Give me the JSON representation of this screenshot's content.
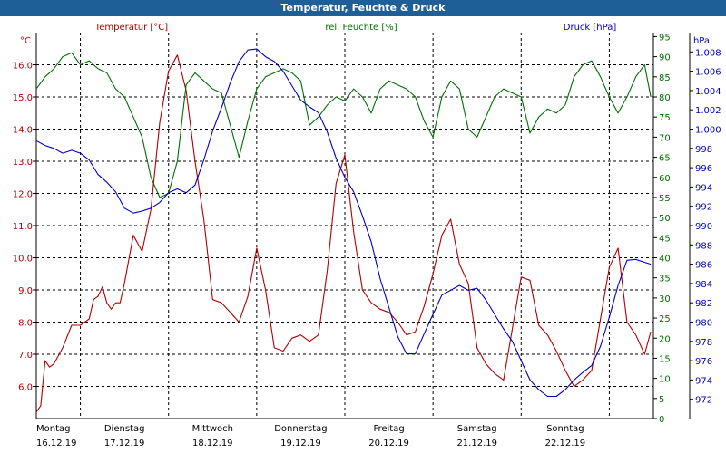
{
  "window": {
    "title": "Temperatur, Feuchte & Druck"
  },
  "colors": {
    "temperature": "#b00000",
    "humidity": "#007000",
    "pressure": "#0000c0",
    "grid": "#000000",
    "title_bar": "#1f5f98"
  },
  "chart_data": {
    "type": "line",
    "title": "Temperatur, Feuchte & Druck",
    "grid": true,
    "x_range": [
      0,
      7
    ],
    "x_ticks": [
      {
        "day": "Montag",
        "date": "16.12.19"
      },
      {
        "day": "Dienstag",
        "date": "17.12.19"
      },
      {
        "day": "Mittwoch",
        "date": "18.12.19"
      },
      {
        "day": "Donnerstag",
        "date": "19.12.19"
      },
      {
        "day": "Freitag",
        "date": "20.12.19"
      },
      {
        "day": "Samstag",
        "date": "21.12.19"
      },
      {
        "day": "Sonntag",
        "date": "22.12.19"
      }
    ],
    "axes": {
      "temperature": {
        "label": "Temperatur [°C]",
        "unit": "°C",
        "range": [
          5.0,
          17.0
        ],
        "ticks": [
          "6.0",
          "7.0",
          "8.0",
          "9.0",
          "10.0",
          "11.0",
          "12.0",
          "13.0",
          "14.0",
          "15.0",
          "16.0"
        ]
      },
      "humidity": {
        "label": "rel. Feuchte [%]",
        "unit": "%",
        "range": [
          0,
          96
        ],
        "ticks": [
          "0",
          "5",
          "10",
          "15",
          "20",
          "25",
          "30",
          "35",
          "40",
          "45",
          "50",
          "55",
          "60",
          "65",
          "70",
          "75",
          "80",
          "85",
          "90",
          "95"
        ]
      },
      "pressure": {
        "label": "Druck [hPa]",
        "unit": "hPa",
        "range": [
          970,
          1010
        ],
        "ticks": [
          "972",
          "974",
          "976",
          "978",
          "980",
          "982",
          "984",
          "986",
          "988",
          "990",
          "992",
          "994",
          "996",
          "998",
          "1.000",
          "1.002",
          "1.004",
          "1.006",
          "1.008"
        ]
      }
    },
    "series": [
      {
        "name": "Temperatur [°C]",
        "axis": "temperature",
        "x": [
          0,
          0.05,
          0.1,
          0.15,
          0.2,
          0.3,
          0.4,
          0.5,
          0.6,
          0.65,
          0.7,
          0.75,
          0.8,
          0.85,
          0.9,
          0.95,
          1.0,
          1.1,
          1.2,
          1.3,
          1.4,
          1.5,
          1.6,
          1.7,
          1.8,
          1.9,
          2.0,
          2.1,
          2.2,
          2.3,
          2.4,
          2.5,
          2.6,
          2.7,
          2.8,
          2.9,
          3.0,
          3.1,
          3.2,
          3.3,
          3.4,
          3.5,
          3.6,
          3.7,
          3.8,
          3.9,
          4.0,
          4.1,
          4.2,
          4.3,
          4.4,
          4.5,
          4.6,
          4.7,
          4.8,
          4.9,
          5.0,
          5.1,
          5.2,
          5.3,
          5.4,
          5.5,
          5.6,
          5.7,
          5.8,
          5.9,
          6.0,
          6.1,
          6.2,
          6.3,
          6.4,
          6.5,
          6.6,
          6.7,
          6.8,
          6.9,
          6.97
        ],
        "values": [
          5.2,
          5.4,
          6.8,
          6.6,
          6.7,
          7.2,
          7.9,
          7.9,
          8.1,
          8.7,
          8.8,
          9.1,
          8.6,
          8.4,
          8.6,
          8.6,
          9.2,
          10.7,
          10.2,
          11.5,
          14.2,
          15.8,
          16.3,
          15.2,
          13.0,
          11.2,
          8.7,
          8.6,
          8.3,
          8.0,
          8.8,
          10.3,
          9.0,
          7.2,
          7.1,
          7.5,
          7.6,
          7.4,
          7.6,
          9.6,
          12.3,
          13.2,
          10.8,
          9.0,
          8.6,
          8.4,
          8.3,
          8.0,
          7.6,
          7.7,
          8.5,
          9.5,
          10.7,
          11.2,
          9.8,
          9.2,
          7.2,
          6.7,
          6.4,
          6.2,
          7.8,
          9.4,
          9.3,
          7.9,
          7.6,
          7.1,
          6.5,
          6.0,
          6.2,
          6.5,
          8.1,
          9.7,
          10.3,
          8.0,
          7.6,
          7.0,
          7.7
        ]
      },
      {
        "name": "rel. Feuchte [%]",
        "axis": "humidity",
        "x": [
          0,
          0.1,
          0.2,
          0.3,
          0.4,
          0.5,
          0.6,
          0.7,
          0.8,
          0.9,
          1.0,
          1.1,
          1.2,
          1.3,
          1.4,
          1.5,
          1.6,
          1.7,
          1.8,
          1.9,
          2.0,
          2.1,
          2.2,
          2.3,
          2.4,
          2.5,
          2.6,
          2.7,
          2.8,
          2.9,
          3.0,
          3.1,
          3.2,
          3.3,
          3.4,
          3.5,
          3.6,
          3.7,
          3.8,
          3.9,
          4.0,
          4.1,
          4.2,
          4.3,
          4.4,
          4.5,
          4.6,
          4.7,
          4.8,
          4.9,
          5.0,
          5.1,
          5.2,
          5.3,
          5.4,
          5.5,
          5.6,
          5.7,
          5.8,
          5.9,
          6.0,
          6.1,
          6.2,
          6.3,
          6.4,
          6.5,
          6.6,
          6.7,
          6.8,
          6.9,
          6.97
        ],
        "values": [
          82,
          85,
          87,
          90,
          91,
          88,
          89,
          87,
          86,
          82,
          80,
          75,
          70,
          60,
          55,
          56,
          64,
          83,
          86,
          84,
          82,
          81,
          73,
          65,
          74,
          82,
          85,
          86,
          87,
          86,
          84,
          73,
          75,
          78,
          80,
          79,
          82,
          80,
          76,
          82,
          84,
          83,
          82,
          80,
          74,
          70,
          80,
          84,
          82,
          72,
          70,
          75,
          80,
          82,
          81,
          80,
          71,
          75,
          77,
          76,
          78,
          85,
          88,
          89,
          85,
          80,
          76,
          80,
          85,
          88,
          80
        ]
      },
      {
        "name": "Druck [hPa]",
        "axis": "pressure",
        "x": [
          0,
          0.1,
          0.2,
          0.3,
          0.4,
          0.5,
          0.6,
          0.7,
          0.8,
          0.9,
          1.0,
          1.1,
          1.2,
          1.3,
          1.4,
          1.5,
          1.6,
          1.7,
          1.8,
          1.9,
          2.0,
          2.1,
          2.2,
          2.3,
          2.4,
          2.5,
          2.6,
          2.7,
          2.8,
          2.9,
          3.0,
          3.1,
          3.2,
          3.3,
          3.4,
          3.5,
          3.6,
          3.7,
          3.8,
          3.9,
          4.0,
          4.1,
          4.2,
          4.3,
          4.4,
          4.5,
          4.6,
          4.7,
          4.8,
          4.9,
          5.0,
          5.1,
          5.2,
          5.3,
          5.4,
          5.5,
          5.6,
          5.7,
          5.8,
          5.9,
          6.0,
          6.1,
          6.2,
          6.3,
          6.4,
          6.5,
          6.6,
          6.7,
          6.8,
          6.9,
          6.97
        ],
        "values": [
          998.8,
          998.3,
          998.0,
          997.5,
          997.8,
          997.5,
          996.8,
          995.3,
          994.5,
          993.5,
          991.8,
          991.3,
          991.5,
          991.8,
          992.4,
          993.4,
          993.8,
          993.4,
          994.2,
          996.8,
          999.8,
          1002.2,
          1004.8,
          1007.0,
          1008.2,
          1008.3,
          1007.5,
          1007.0,
          1006.0,
          1004.5,
          1003.0,
          1002.3,
          1001.7,
          999.7,
          997.0,
          995.0,
          993.5,
          991.0,
          988.3,
          984.5,
          981.5,
          978.5,
          976.7,
          976.7,
          978.8,
          980.8,
          982.8,
          983.3,
          983.8,
          983.3,
          983.5,
          982.3,
          980.8,
          979.3,
          978.0,
          976.0,
          974.0,
          973.0,
          972.3,
          972.3,
          973.0,
          974.0,
          974.8,
          975.5,
          977.5,
          980.5,
          983.8,
          986.4,
          986.5,
          986.2,
          986.0
        ]
      }
    ]
  }
}
